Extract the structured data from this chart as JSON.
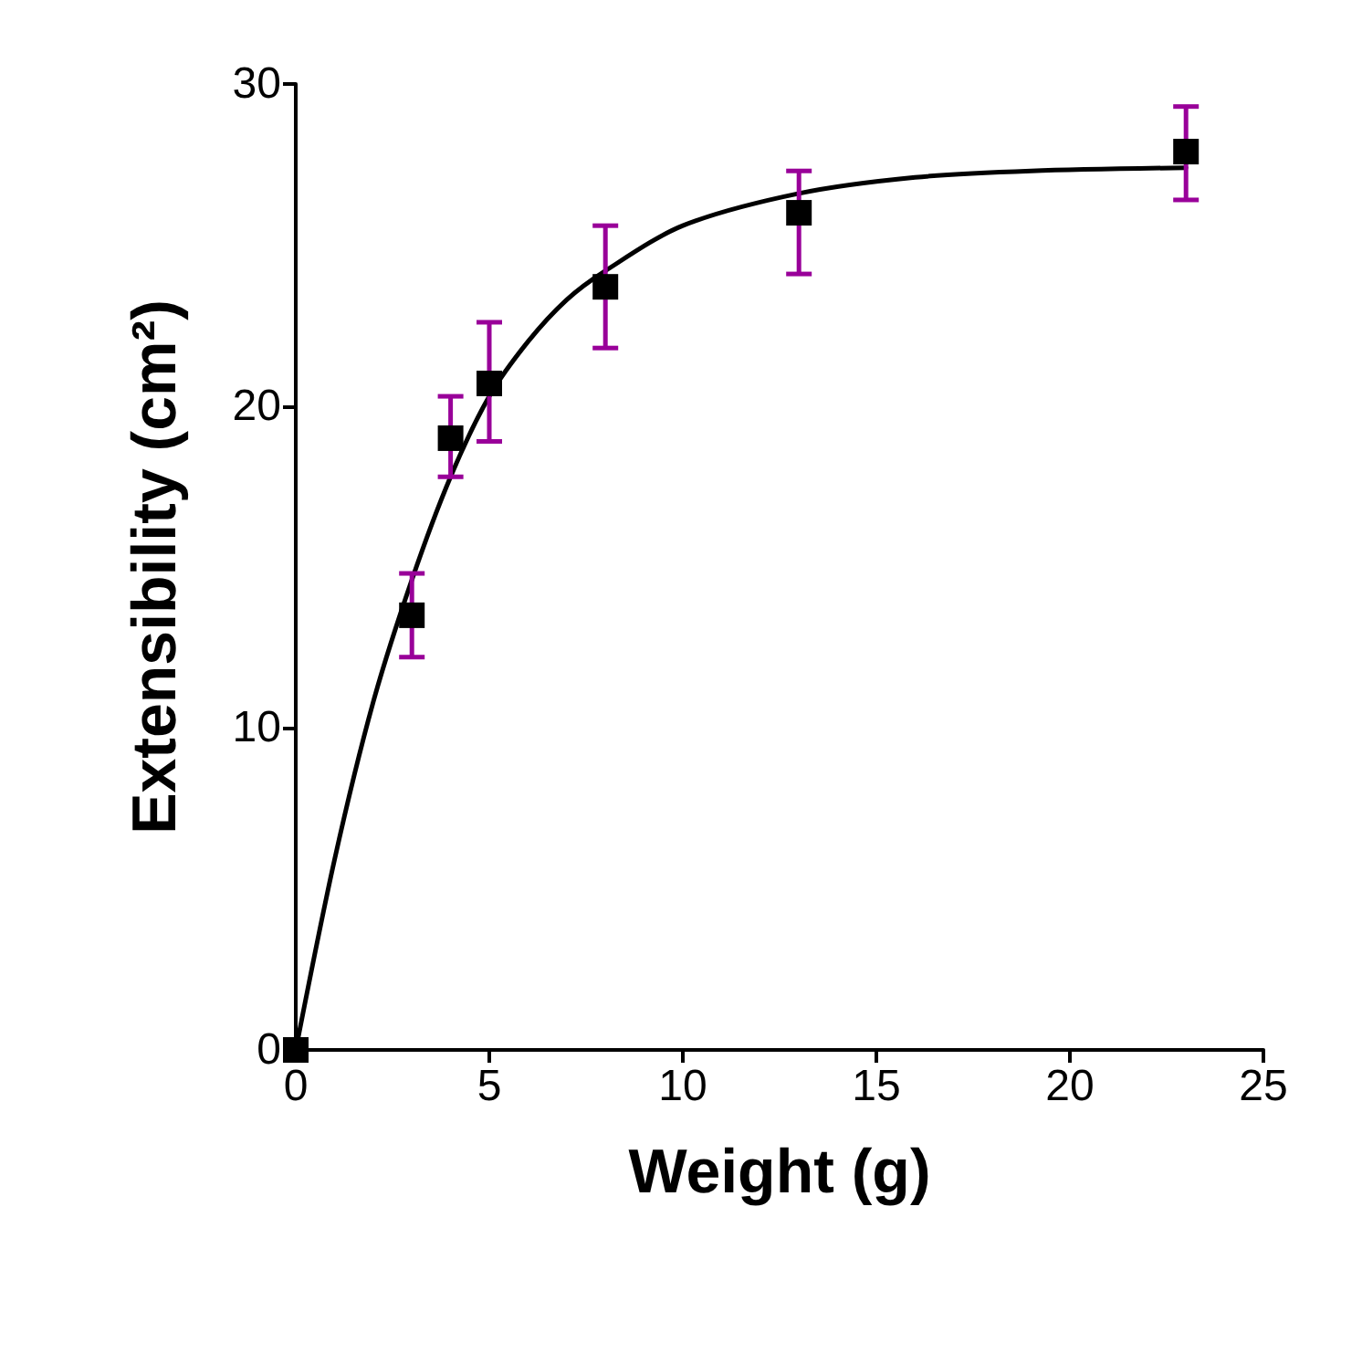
{
  "chart_data": {
    "type": "scatter",
    "xlabel": "Weight (g)",
    "ylabel": "Extensibility (cm²)",
    "xlim": [
      0,
      25
    ],
    "xticks": [
      0,
      5,
      10,
      15,
      20,
      25
    ],
    "ylim": [
      0,
      30
    ],
    "yticks": [
      0,
      10,
      20,
      30
    ],
    "grid": false,
    "series": [
      {
        "color": "#000000",
        "marker": "square",
        "x": [
          0,
          3,
          4,
          5,
          8,
          13,
          23
        ],
        "values": [
          0,
          13.5,
          19.0,
          20.7,
          23.7,
          26.0,
          27.9
        ],
        "errors": [
          null,
          [
            12.2,
            14.8
          ],
          [
            17.8,
            20.3
          ],
          [
            18.9,
            22.6
          ],
          [
            21.8,
            25.6
          ],
          [
            24.1,
            27.3
          ],
          [
            26.4,
            29.3
          ]
        ]
      },
      {
        "type": "line",
        "color": "#000000",
        "marker": "none",
        "line_style": "solid",
        "x": [
          0,
          1,
          2,
          3,
          4,
          5,
          6,
          7,
          8,
          10,
          13,
          16,
          19,
          23
        ],
        "values": [
          0,
          5.9,
          10.8,
          14.6,
          17.8,
          20.3,
          22.0,
          23.3,
          24.2,
          25.6,
          26.6,
          27.1,
          27.3,
          27.4
        ]
      }
    ]
  }
}
